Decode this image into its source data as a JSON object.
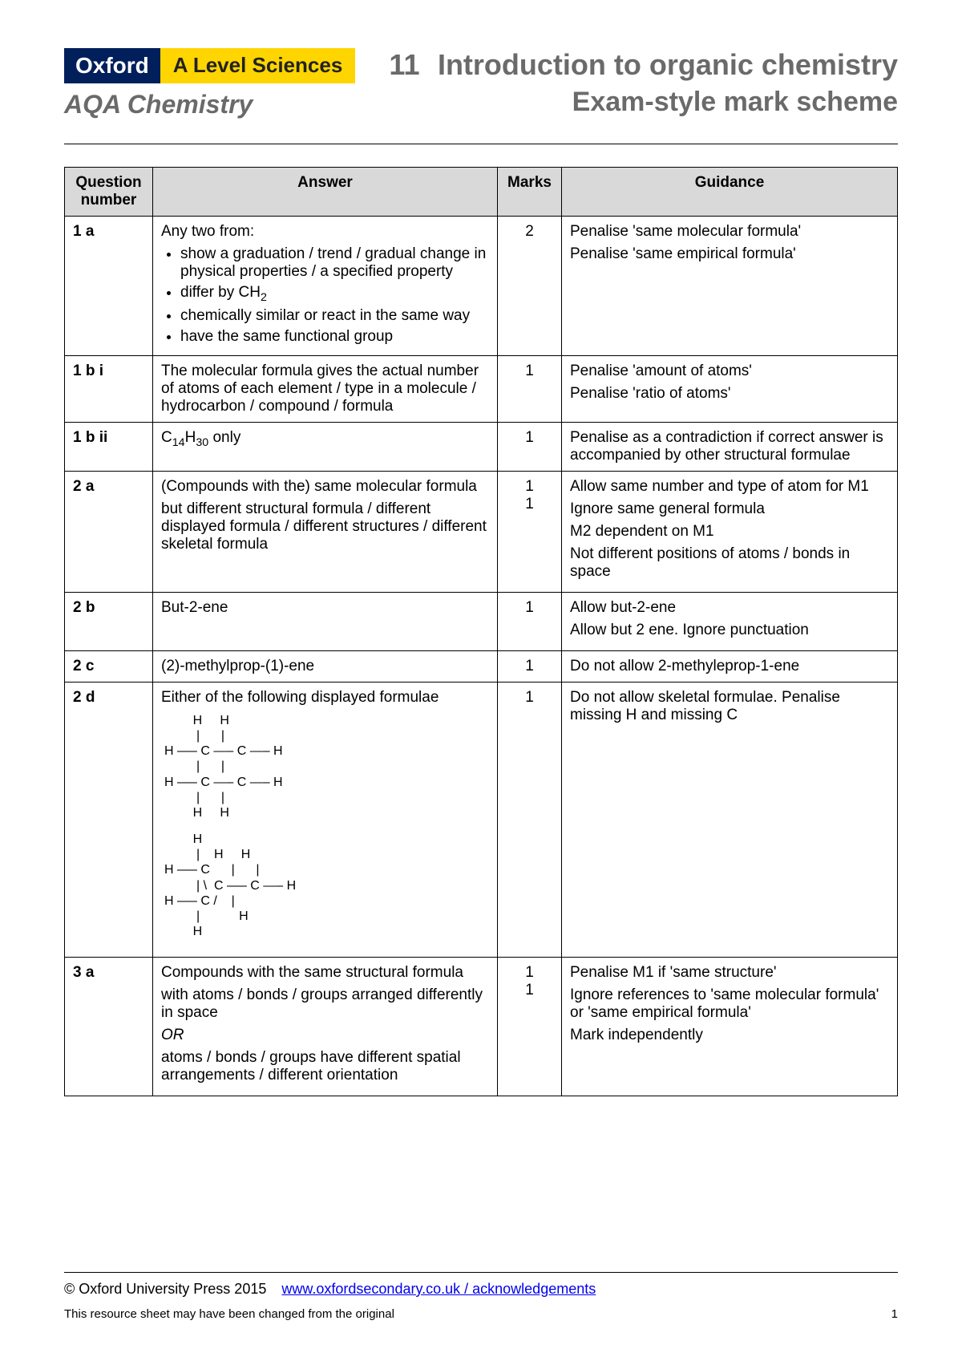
{
  "brand": {
    "oxford": "Oxford",
    "level": "A Level Sciences",
    "subject": "AQA Chemistry"
  },
  "title": {
    "number": "11",
    "main": "Introduction to organic chemistry",
    "sub": "Exam-style mark scheme"
  },
  "table": {
    "headers": {
      "q": "Question number",
      "a": "Answer",
      "m": "Marks",
      "g": "Guidance"
    },
    "rows": {
      "r1a": {
        "q": "1 a",
        "intro": "Any two from:",
        "b1": "show a graduation / trend / gradual change in physical properties / a specified property",
        "b2": "differ by CH",
        "b2sub": "2",
        "b3": "chemically similar or react in the same way",
        "b4": "have the same functional group",
        "m": "2",
        "g1": "Penalise 'same molecular formula'",
        "g2": "Penalise 'same empirical formula'"
      },
      "r1bi": {
        "q": "1 b i",
        "a": "The molecular formula gives the actual number of atoms of each element / type in a molecule / hydrocarbon / compound / formula",
        "m": "1",
        "g1": "Penalise 'amount of atoms'",
        "g2": "Penalise 'ratio of atoms'"
      },
      "r1bii": {
        "q": "1 b ii",
        "a_pre": "C",
        "a_sub1": "14",
        "a_mid": "H",
        "a_sub2": "30",
        "a_post": " only",
        "m": "1",
        "g": "Penalise as a contradiction if correct answer is accompanied by other structural formulae"
      },
      "r2a": {
        "q": "2 a",
        "a1": "(Compounds with the) same molecular formula",
        "a2": "but different structural formula / different displayed formula / different structures / different skeletal formula",
        "m1": "1",
        "m2": "1",
        "g1": "Allow same number and type of atom for M1",
        "g2": "Ignore same general formula",
        "g3": "M2 dependent on M1",
        "g4": "Not different positions of atoms / bonds in space"
      },
      "r2b": {
        "q": "2 b",
        "a": "But-2-ene",
        "m": "1",
        "g1": "Allow but-2-ene",
        "g2": "Allow but 2 ene. Ignore punctuation"
      },
      "r2c": {
        "q": "2 c",
        "a": "(2)-methylprop-(1)-ene",
        "m": "1",
        "g": "Do not allow 2-methyleprop-1-ene"
      },
      "r2d": {
        "q": "2 d",
        "a_intro": "Either of the following displayed formulae",
        "m": "1",
        "g": "Do not allow skeletal formulae. Penalise missing H and missing C"
      },
      "r3a": {
        "q": "3 a",
        "a1": "Compounds with the same structural formula",
        "a2": "with atoms / bonds / groups arranged differently in space",
        "or": "OR",
        "a3": "atoms / bonds / groups have different spatial arrangements / different orientation",
        "m1": "1",
        "m2": "1",
        "g1": "Penalise M1 if 'same structure'",
        "g2": "Ignore references to 'same molecular formula' or 'same empirical formula'",
        "g3": "Mark independently"
      }
    }
  },
  "formula1": "        H     H\n         |      |\nH —– C —– C —– H\n         |      |\nH —– C —– C —– H\n         |      |\n        H     H",
  "formula2": "        H\n         |    H     H\nH —– C      |      |\n         | \\  C —– C —– H\nH —– C /    |\n         |           H\n        H",
  "footer": {
    "copyright": "© Oxford University Press 2015",
    "link": "www.oxfordsecondary.co.uk / acknowledgements",
    "note": "This resource sheet may have been changed from the original",
    "page": "1"
  },
  "colors": {
    "oxford_bg": "#001f5b",
    "level_bg": "#ffd500",
    "grey_text": "#6a6a6a",
    "header_bg": "#d9d9d9",
    "link": "#0000ee"
  }
}
